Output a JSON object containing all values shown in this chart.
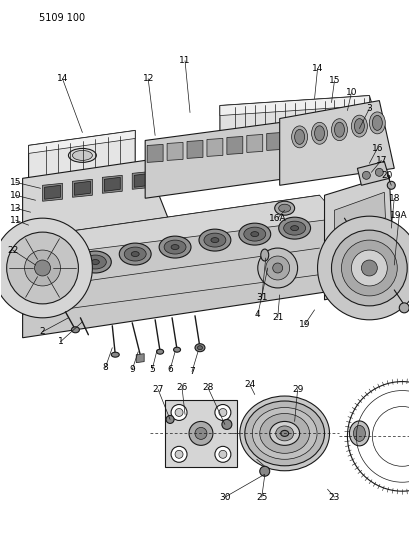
{
  "title": "5109 100",
  "bg_color": "#ffffff",
  "line_color": "#1a1a1a",
  "text_color": "#000000",
  "fig_width": 4.1,
  "fig_height": 5.33,
  "dpi": 100
}
